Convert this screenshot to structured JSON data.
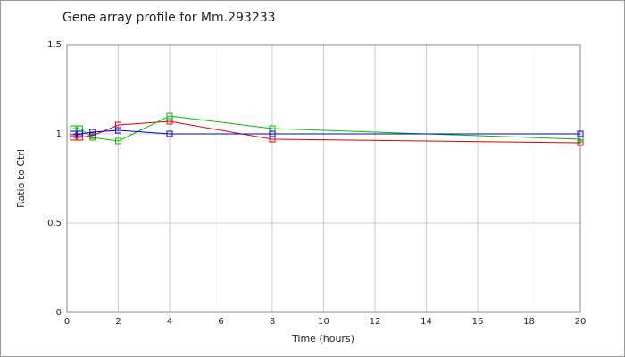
{
  "chart_data": {
    "type": "line",
    "title": "Gene array profile for Mm.293233",
    "x_label": "Time (hours)",
    "y_label": "Ratio to Ctrl",
    "x": [
      0.25,
      0.5,
      1,
      2,
      4,
      8,
      20
    ],
    "series": [
      {
        "color": "#dd0000",
        "values": [
          0.98,
          0.98,
          0.99,
          1.05,
          1.07,
          0.97,
          0.95
        ]
      },
      {
        "color": "#00bb00",
        "values": [
          1.03,
          1.03,
          0.98,
          0.96,
          1.1,
          1.03,
          0.97
        ]
      },
      {
        "color": "#0000cc",
        "values": [
          1.0,
          1.0,
          1.01,
          1.02,
          1.0,
          1.0,
          1.0
        ]
      }
    ],
    "xlim": [
      0,
      20
    ],
    "xticks": [
      0,
      2,
      4,
      6,
      8,
      10,
      12,
      14,
      16,
      18,
      20
    ],
    "ylim": [
      0,
      1.5
    ],
    "yticks": [
      0,
      0.5,
      1,
      1.5
    ],
    "grid": true
  }
}
